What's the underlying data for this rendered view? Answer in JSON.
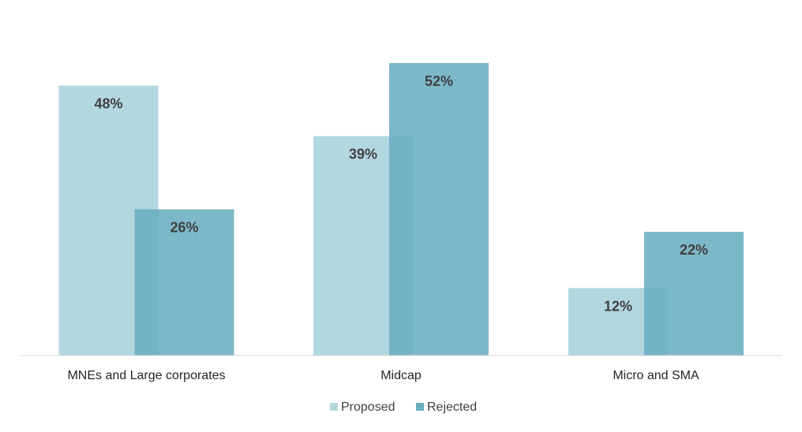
{
  "chart_data": {
    "type": "bar",
    "categories": [
      "MNEs and Large corporates",
      "Midcap",
      "Micro and SMA"
    ],
    "series": [
      {
        "name": "Proposed",
        "values": [
          48,
          39,
          12
        ],
        "labels": [
          "48%",
          "39%",
          "12%"
        ],
        "color": "#b3d7e1"
      },
      {
        "name": "Rejected",
        "values": [
          26,
          52,
          22
        ],
        "labels": [
          "26%",
          "52%",
          "22%"
        ],
        "color": "#6aaec0"
      }
    ],
    "ylim": [
      0,
      52
    ],
    "grid": false,
    "legend": "bottom",
    "unit": "%"
  }
}
